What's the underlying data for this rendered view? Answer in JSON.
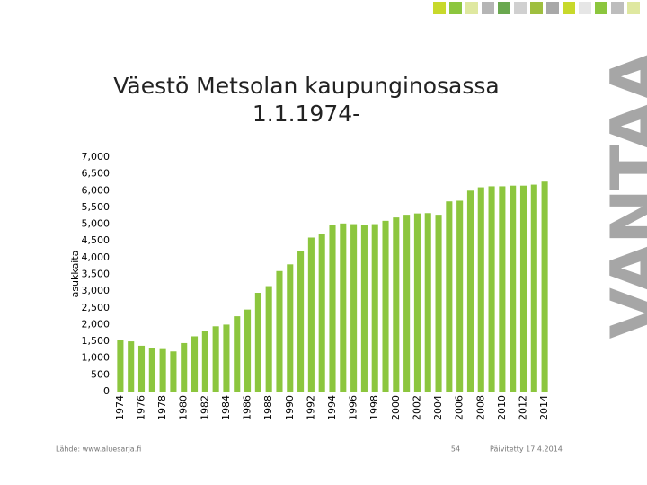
{
  "chart_data": {
    "type": "bar",
    "title": "Väestö Metsolan kaupunginosassa 1.1.1974-",
    "y_label": "asukkaita",
    "brand": "VANTAA",
    "source": "Lähde: www.aluesarja.fi",
    "page": "54",
    "updated": "Päivitetty 17.4.2014",
    "categories": [
      "1974",
      null,
      "1976",
      null,
      "1978",
      null,
      "1980",
      null,
      "1982",
      null,
      "1984",
      null,
      "1986",
      null,
      "1988",
      null,
      "1990",
      null,
      "1992",
      null,
      "1994",
      null,
      "1996",
      null,
      "1998",
      null,
      "2000",
      null,
      "2002",
      null,
      "2004",
      null,
      "2006",
      null,
      "2008",
      null,
      "2010",
      null,
      "2012",
      null,
      "2014"
    ],
    "values": [
      1550,
      1500,
      1370,
      1300,
      1270,
      1200,
      1450,
      1650,
      1800,
      1950,
      2000,
      2250,
      2450,
      2950,
      3150,
      3600,
      3800,
      4200,
      4600,
      4700,
      4980,
      5020,
      5000,
      4980,
      5000,
      5100,
      5200,
      5280,
      5320,
      5330,
      5280,
      5680,
      5700,
      6000,
      6100,
      6130,
      6130,
      6150,
      6150,
      6180,
      6270
    ],
    "color": "#8cc63e",
    "ylim": [
      0,
      7000
    ],
    "yticks": [
      0,
      500,
      {
        "value": 1000,
        "label": "1,000"
      },
      {
        "value": 1500,
        "label": "1,500"
      },
      {
        "value": 2000,
        "label": "2,000"
      },
      {
        "value": 2500,
        "label": "2,500"
      },
      {
        "value": 3000,
        "label": "3,000"
      },
      {
        "value": 3500,
        "label": "3,500"
      },
      {
        "value": 4000,
        "label": "4,000"
      },
      {
        "value": 4500,
        "label": "4,500"
      },
      {
        "value": 5000,
        "label": "5,000"
      },
      {
        "value": 5500,
        "label": "5,500"
      },
      {
        "value": 6000,
        "label": "6,000"
      },
      {
        "value": 6500,
        "label": "6,500"
      },
      {
        "value": 7000,
        "label": "7,000"
      }
    ],
    "grid": false
  }
}
